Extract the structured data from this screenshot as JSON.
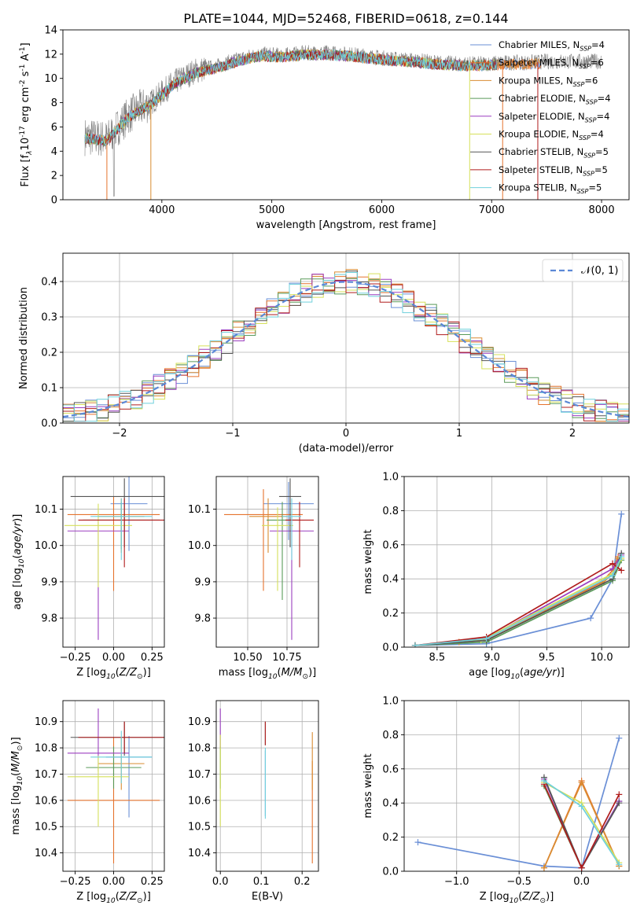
{
  "colors": {
    "Chabrier MILES": "#6a8fd6",
    "Salpeter MILES": "#e5732e",
    "Kroupa MILES": "#d98c32",
    "Chabrier ELODIE": "#5a9a5a",
    "Salpeter ELODIE": "#9b3fc0",
    "Kroupa ELODIE": "#d6e05a",
    "Chabrier STELIB": "#555555",
    "Salpeter STELIB": "#b01c1c",
    "Kroupa STELIB": "#6fd0dc",
    "data": "#808080",
    "normal": "#5b88d6"
  },
  "chart_data": [
    {
      "id": "spectrum",
      "type": "line",
      "title": "PLATE=1044, MJD=52468, FIBERID=0618, z=0.144",
      "xlabel": "wavelength [Angstrom, rest frame]",
      "ylabel": "Flux [f$_\\lambda$10$^{-17}$ erg cm$^{-2}$ s$^{-1}$ A$^{-1}$]",
      "xlim": [
        3100,
        8250
      ],
      "ylim": [
        0,
        14
      ],
      "xticks": [
        "4000",
        "5000",
        "6000",
        "7000",
        "8000"
      ],
      "yticks": [
        "0",
        "2",
        "4",
        "6",
        "8",
        "10",
        "12",
        "14"
      ],
      "data_series": {
        "name": "data",
        "x": [
          3300,
          3500,
          3700,
          3900,
          4100,
          4300,
          4500,
          4700,
          4900,
          5100,
          5300,
          5500,
          5700,
          5900,
          6100,
          6300,
          6500,
          6700,
          6900,
          7100,
          7300,
          7500,
          7700,
          7900,
          8000
        ],
        "y": [
          5.2,
          5.0,
          7.0,
          8.0,
          9.6,
          10.6,
          11.0,
          11.6,
          12.0,
          11.9,
          12.1,
          12.1,
          12.0,
          11.8,
          11.6,
          11.5,
          11.3,
          11.2,
          11.2,
          11.3,
          11.3,
          11.4,
          11.4,
          11.4,
          11.4
        ]
      },
      "legend": [
        "Chabrier MILES, N$_{SSP}$=4",
        "Salpeter MILES, N$_{SSP}$=6",
        "Kroupa MILES, N$_{SSP}$=6",
        "Chabrier ELODIE, N$_{SSP}$=4",
        "Salpeter ELODIE, N$_{SSP}$=4",
        "Kroupa ELODIE, N$_{SSP}$=4",
        "Chabrier STELIB, N$_{SSP}$=5",
        "Salpeter STELIB, N$_{SSP}$=5",
        "Kroupa STELIB, N$_{SSP}$=5"
      ],
      "legend_placement": "top-right"
    },
    {
      "id": "residuals",
      "type": "line",
      "xlabel": "(data-model)/error",
      "ylabel": "Normed distribution",
      "xlim": [
        -2.5,
        2.5
      ],
      "ylim": [
        0,
        0.48
      ],
      "xticks": [
        "−2",
        "−1",
        "0",
        "1",
        "2"
      ],
      "yticks": [
        "0.0",
        "0.1",
        "0.2",
        "0.3",
        "0.4"
      ],
      "grid": true,
      "normal_label": "𝒩(0, 1)",
      "legend_placement": "top-right"
    },
    {
      "id": "age_vs_Z",
      "type": "scatter",
      "xlabel": "Z [log$_{10}$($Z/Z_\\odot$)]",
      "ylabel": "age  [log$_{10}$($age/yr$)]",
      "xlim": [
        -0.33,
        0.33
      ],
      "ylim": [
        9.72,
        10.19
      ],
      "xticks": [
        "−0.25",
        "0.00",
        "0.25"
      ],
      "yticks": [
        "9.8",
        "9.9",
        "10.0",
        "10.1"
      ],
      "grid": true,
      "points": [
        {
          "model": "Chabrier MILES",
          "x": 0.1,
          "xerr": 0.12,
          "y": 10.115,
          "yerr": [
            0.13,
            0.1
          ]
        },
        {
          "model": "Salpeter MILES",
          "x": 0.0,
          "xerr": 0.3,
          "y": 10.085,
          "yerr": [
            0.21,
            0.05
          ]
        },
        {
          "model": "Kroupa MILES",
          "x": 0.05,
          "xerr": 0.15,
          "y": 10.08,
          "yerr": [
            0.1,
            0.05
          ]
        },
        {
          "model": "Chabrier ELODIE",
          "x": 0.05,
          "xerr": 0.25,
          "y": 10.07,
          "yerr": [
            0.08,
            0.05
          ]
        },
        {
          "model": "Salpeter ELODIE",
          "x": -0.1,
          "xerr": 0.2,
          "y": 10.04,
          "yerr": [
            0.3,
            0.03
          ]
        },
        {
          "model": "Kroupa ELODIE",
          "x": -0.1,
          "xerr": 0.22,
          "y": 10.055,
          "yerr": [
            0.17,
            0.06
          ]
        },
        {
          "model": "Chabrier STELIB",
          "x": 0.07,
          "xerr": 0.35,
          "y": 10.135,
          "yerr": [
            0.14,
            0.05
          ]
        },
        {
          "model": "Salpeter STELIB",
          "x": 0.07,
          "xerr": 0.3,
          "y": 10.07,
          "yerr": [
            0.13,
            0.06
          ]
        },
        {
          "model": "Kroupa STELIB",
          "x": 0.05,
          "xerr": 0.2,
          "y": 10.08,
          "yerr": [
            0.12,
            0.05
          ]
        }
      ]
    },
    {
      "id": "age_vs_mass",
      "type": "scatter",
      "xlabel": "mass [log$_{10}$($M/M_\\odot$)]",
      "xlim": [
        10.3,
        10.95
      ],
      "ylim": [
        9.72,
        10.19
      ],
      "xticks": [
        "10.50",
        "10.75"
      ],
      "yticks": [
        "9.8",
        "9.9",
        "10.0",
        "10.1"
      ],
      "grid": true,
      "points": [
        {
          "model": "Chabrier MILES",
          "x": 10.76,
          "xerr": 0.16,
          "y": 10.115,
          "yerr": [
            0.1,
            0.06
          ]
        },
        {
          "model": "Salpeter MILES",
          "x": 10.6,
          "xerr": 0.25,
          "y": 10.085,
          "yerr": [
            0.21,
            0.07
          ]
        },
        {
          "model": "Kroupa MILES",
          "x": 10.63,
          "xerr": 0.12,
          "y": 10.08,
          "yerr": [
            0.1,
            0.05
          ]
        },
        {
          "model": "Chabrier ELODIE",
          "x": 10.72,
          "xerr": 0.1,
          "y": 10.07,
          "yerr": [
            0.22,
            0.05
          ]
        },
        {
          "model": "Salpeter ELODIE",
          "x": 10.78,
          "xerr": 0.14,
          "y": 10.04,
          "yerr": [
            0.3,
            0.04
          ]
        },
        {
          "model": "Kroupa ELODIE",
          "x": 10.69,
          "xerr": 0.1,
          "y": 10.055,
          "yerr": [
            0.18,
            0.05
          ]
        },
        {
          "model": "Chabrier STELIB",
          "x": 10.77,
          "xerr": 0.07,
          "y": 10.135,
          "yerr": [
            0.14,
            0.05
          ]
        },
        {
          "model": "Salpeter STELIB",
          "x": 10.83,
          "xerr": 0.09,
          "y": 10.07,
          "yerr": [
            0.13,
            0.05
          ]
        },
        {
          "model": "Kroupa STELIB",
          "x": 10.78,
          "xerr": 0.06,
          "y": 10.08,
          "yerr": [
            0.12,
            0.05
          ]
        }
      ]
    },
    {
      "id": "mass_weight_vs_age",
      "type": "line",
      "xlabel": "age  [log$_{10}$($age/yr$)]",
      "ylabel": "mass weight",
      "xlim": [
        8.2,
        10.25
      ],
      "ylim": [
        0,
        1
      ],
      "xticks": [
        "8.5",
        "9.0",
        "9.5",
        "10.0"
      ],
      "yticks": [
        "0.0",
        "0.2",
        "0.4",
        "0.6",
        "0.8",
        "1.0"
      ],
      "grid": true,
      "series": [
        {
          "model": "Chabrier MILES",
          "x": [
            8.3,
            8.95,
            9.9,
            10.1,
            10.18
          ],
          "y": [
            0.01,
            0.02,
            0.17,
            0.4,
            0.78
          ]
        },
        {
          "model": "Salpeter MILES",
          "x": [
            8.3,
            8.7,
            8.95,
            10.0,
            10.1,
            10.15
          ],
          "y": [
            0.01,
            0.03,
            0.04,
            0.38,
            0.45,
            0.53
          ]
        },
        {
          "model": "Kroupa MILES",
          "x": [
            8.3,
            8.7,
            8.95,
            10.0,
            10.1,
            10.15
          ],
          "y": [
            0.01,
            0.03,
            0.04,
            0.37,
            0.43,
            0.52
          ]
        },
        {
          "model": "Chabrier ELODIE",
          "x": [
            8.3,
            8.95,
            10.1,
            10.18
          ],
          "y": [
            0.01,
            0.03,
            0.39,
            0.51
          ]
        },
        {
          "model": "Salpeter ELODIE",
          "x": [
            8.3,
            8.95,
            10.1,
            10.18
          ],
          "y": [
            0.01,
            0.05,
            0.46,
            0.54
          ]
        },
        {
          "model": "Kroupa ELODIE",
          "x": [
            8.3,
            8.9,
            10.1,
            10.18
          ],
          "y": [
            0.01,
            0.04,
            0.43,
            0.52
          ]
        },
        {
          "model": "Chabrier STELIB",
          "x": [
            8.3,
            8.95,
            10.1,
            10.18
          ],
          "y": [
            0.01,
            0.04,
            0.4,
            0.55
          ]
        },
        {
          "model": "Salpeter STELIB",
          "x": [
            8.3,
            8.95,
            10.1,
            10.18
          ],
          "y": [
            0.01,
            0.06,
            0.49,
            0.45
          ]
        },
        {
          "model": "Kroupa STELIB",
          "x": [
            8.3,
            8.95,
            10.1,
            10.18
          ],
          "y": [
            0.01,
            0.05,
            0.42,
            0.53
          ]
        }
      ]
    },
    {
      "id": "mass_vs_Z",
      "type": "scatter",
      "xlabel": "Z [log$_{10}$($Z/Z_\\odot$)]",
      "ylabel": "mass [log$_{10}$($M/M_\\odot$)]",
      "xlim": [
        -0.33,
        0.33
      ],
      "ylim": [
        10.33,
        10.98
      ],
      "xticks": [
        "−0.25",
        "0.00",
        "0.25"
      ],
      "yticks": [
        "10.4",
        "10.5",
        "10.6",
        "10.7",
        "10.8",
        "10.9"
      ],
      "grid": true,
      "points": [
        {
          "model": "Chabrier MILES",
          "x": 0.1,
          "xerr": 0.15,
          "y": 10.765,
          "yerr": [
            0.23,
            0.08
          ]
        },
        {
          "model": "Salpeter MILES",
          "x": 0.0,
          "xerr": 0.3,
          "y": 10.6,
          "yerr": [
            0.24,
            0.24
          ]
        },
        {
          "model": "Kroupa MILES",
          "x": 0.05,
          "xerr": 0.15,
          "y": 10.74,
          "yerr": [
            0.1,
            0.1
          ]
        },
        {
          "model": "Chabrier ELODIE",
          "x": 0.0,
          "xerr": 0.18,
          "y": 10.725,
          "yerr": [
            0.08,
            0.08
          ]
        },
        {
          "model": "Salpeter ELODIE",
          "x": -0.1,
          "xerr": 0.2,
          "y": 10.78,
          "yerr": [
            0.07,
            0.17
          ]
        },
        {
          "model": "Kroupa ELODIE",
          "x": -0.1,
          "xerr": 0.2,
          "y": 10.69,
          "yerr": [
            0.19,
            0.08
          ]
        },
        {
          "model": "Chabrier STELIB",
          "x": 0.07,
          "xerr": 0.35,
          "y": 10.84,
          "yerr": [
            0.07,
            0.06
          ]
        },
        {
          "model": "Salpeter STELIB",
          "x": 0.07,
          "xerr": 0.3,
          "y": 10.84,
          "yerr": [
            0.06,
            0.06
          ]
        },
        {
          "model": "Kroupa STELIB",
          "x": 0.05,
          "xerr": 0.2,
          "y": 10.765,
          "yerr": [
            0.1,
            0.1
          ]
        }
      ]
    },
    {
      "id": "mass_vs_ebv",
      "type": "scatter",
      "xlabel": "E(B-V)",
      "xlim": [
        -0.01,
        0.24
      ],
      "ylim": [
        10.33,
        10.98
      ],
      "xticks": [
        "0.0",
        "0.1",
        "0.2"
      ],
      "yticks": [
        "10.4",
        "10.5",
        "10.6",
        "10.7",
        "10.8",
        "10.9"
      ],
      "grid": true,
      "points": [
        {
          "model": "Chabrier MILES",
          "x": 0.11,
          "y": 10.72,
          "yerr": [
            0.18,
            0.07
          ]
        },
        {
          "model": "Salpeter MILES",
          "x": 0.225,
          "y": 10.6,
          "yerr": [
            0.24,
            0.15
          ]
        },
        {
          "model": "Kroupa MILES",
          "x": 0.225,
          "y": 10.74,
          "yerr": [
            0.1,
            0.12
          ]
        },
        {
          "model": "Chabrier ELODIE",
          "x": 0.0,
          "y": 10.725,
          "yerr": [
            0.08,
            0.08
          ]
        },
        {
          "model": "Salpeter ELODIE",
          "x": 0.0,
          "y": 10.85,
          "yerr": [
            0.05,
            0.1
          ]
        },
        {
          "model": "Kroupa ELODIE",
          "x": 0.0,
          "y": 10.69,
          "yerr": [
            0.19,
            0.16
          ]
        },
        {
          "model": "Chabrier STELIB",
          "x": 0.11,
          "y": 10.84,
          "yerr": [
            0.03,
            0.06
          ]
        },
        {
          "model": "Salpeter STELIB",
          "x": 0.11,
          "y": 10.84,
          "yerr": [
            0.03,
            0.06
          ]
        },
        {
          "model": "Kroupa STELIB",
          "x": 0.11,
          "y": 10.7,
          "yerr": [
            0.17,
            0.1
          ]
        }
      ]
    },
    {
      "id": "mass_weight_vs_Z",
      "type": "line",
      "xlabel": "Z [log$_{10}$($Z/Z_\\odot$)]",
      "ylabel": "mass weight",
      "xlim": [
        -1.42,
        0.38
      ],
      "ylim": [
        0,
        1
      ],
      "xticks": [
        "−1.0",
        "−0.5",
        "0.0"
      ],
      "yticks": [
        "0.0",
        "0.2",
        "0.4",
        "0.6",
        "0.8",
        "1.0"
      ],
      "grid": true,
      "series": [
        {
          "model": "Chabrier MILES",
          "x": [
            -1.31,
            -0.3,
            0.0,
            0.3
          ],
          "y": [
            0.17,
            0.03,
            0.02,
            0.78
          ]
        },
        {
          "model": "Salpeter MILES",
          "x": [
            -0.3,
            0.0,
            0.3
          ],
          "y": [
            0.02,
            0.53,
            0.03
          ]
        },
        {
          "model": "Kroupa MILES",
          "x": [
            -0.3,
            0.0,
            0.3
          ],
          "y": [
            0.02,
            0.52,
            0.03
          ]
        },
        {
          "model": "Chabrier ELODIE",
          "x": [
            -0.3,
            0.0,
            0.3
          ],
          "y": [
            0.5,
            0.02,
            0.41
          ]
        },
        {
          "model": "Salpeter ELODIE",
          "x": [
            -0.3,
            0.0,
            0.3
          ],
          "y": [
            0.54,
            0.02,
            0.41
          ]
        },
        {
          "model": "Kroupa ELODIE",
          "x": [
            -0.3,
            0.0,
            0.3
          ],
          "y": [
            0.52,
            0.4,
            0.05
          ]
        },
        {
          "model": "Chabrier STELIB",
          "x": [
            -0.3,
            0.0,
            0.3
          ],
          "y": [
            0.55,
            0.02,
            0.4
          ]
        },
        {
          "model": "Salpeter STELIB",
          "x": [
            -0.3,
            0.0,
            0.3
          ],
          "y": [
            0.51,
            0.02,
            0.45
          ]
        },
        {
          "model": "Kroupa STELIB",
          "x": [
            -0.3,
            0.0,
            0.3
          ],
          "y": [
            0.53,
            0.38,
            0.04
          ]
        }
      ]
    }
  ]
}
